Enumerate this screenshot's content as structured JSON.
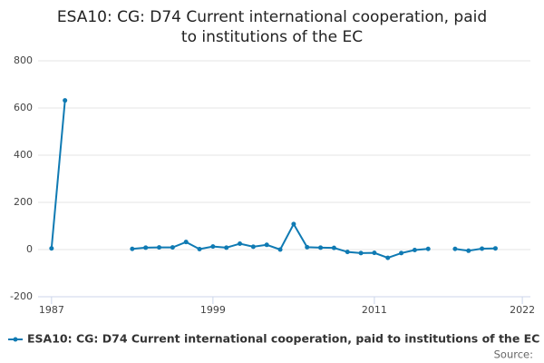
{
  "chart_data": {
    "type": "line",
    "title": "ESA10: CG: D74 Current international cooperation, paid to institutions of the EC",
    "x": [
      1987,
      1988,
      1989,
      1990,
      1991,
      1992,
      1993,
      1994,
      1995,
      1996,
      1997,
      1998,
      1999,
      2000,
      2001,
      2002,
      2003,
      2004,
      2005,
      2006,
      2007,
      2008,
      2009,
      2010,
      2011,
      2012,
      2013,
      2014,
      2015,
      2016,
      2017,
      2018,
      2019,
      2020
    ],
    "series": [
      {
        "name": "ESA10: CG: D74 Current international cooperation, paid to institutions of the EC",
        "color": "#0f7ab3",
        "values": [
          5,
          632,
          null,
          null,
          null,
          null,
          3,
          8,
          9,
          9,
          32,
          2,
          13,
          8,
          25,
          12,
          20,
          0,
          108,
          10,
          8,
          7,
          -10,
          -15,
          -14,
          -35,
          -15,
          -2,
          3,
          null,
          3,
          -5,
          4,
          5
        ]
      }
    ],
    "xlim": [
      1986,
      2022.6
    ],
    "xticks": [
      1987,
      1999,
      2011,
      2022
    ],
    "ylim": [
      -200,
      800
    ],
    "yticks": [
      -200,
      0,
      200,
      400,
      600,
      800
    ],
    "grid": true,
    "source": "Source:"
  }
}
